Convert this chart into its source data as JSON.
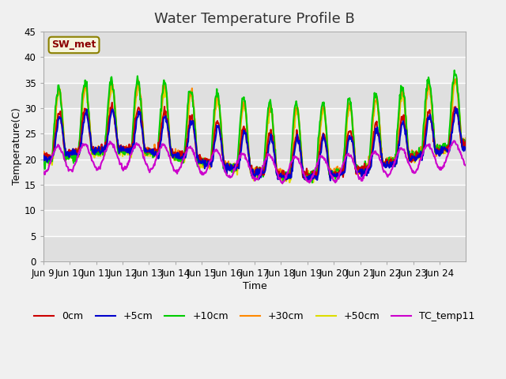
{
  "title": "Water Temperature Profile B",
  "xlabel": "Time",
  "ylabel": "Temperature(C)",
  "ylim": [
    0,
    45
  ],
  "yticks": [
    0,
    5,
    10,
    15,
    20,
    25,
    30,
    35,
    40,
    45
  ],
  "background_color": "#f0f0f0",
  "plot_bg_color": "#e8e8e8",
  "annotation": "SW_met",
  "annotation_color": "#8B0000",
  "annotation_bg": "#f5f5dc",
  "series_colors": {
    "0cm": "#cc0000",
    "+5cm": "#0000cc",
    "+10cm": "#00cc00",
    "+30cm": "#ff8800",
    "+50cm": "#dddd00",
    "TC_temp11": "#cc00cc"
  },
  "xtick_labels": [
    "Jun 9",
    "Jun 10",
    "Jun 11",
    "Jun 12",
    "Jun 13",
    "Jun 14",
    "Jun 15",
    "Jun 16",
    "Jun 17",
    "Jun 18",
    "Jun 19",
    "Jun 20",
    "Jun 21",
    "Jun 22",
    "Jun 23",
    "Jun 24"
  ],
  "xtick_positions": [
    0,
    1,
    2,
    3,
    4,
    5,
    6,
    7,
    8,
    9,
    10,
    11,
    12,
    13,
    14,
    15
  ],
  "n_days": 16,
  "samples_per_day": 48,
  "title_fontsize": 13,
  "axis_fontsize": 9,
  "tick_fontsize": 8.5,
  "legend_fontsize": 9,
  "linewidth": 1.5
}
